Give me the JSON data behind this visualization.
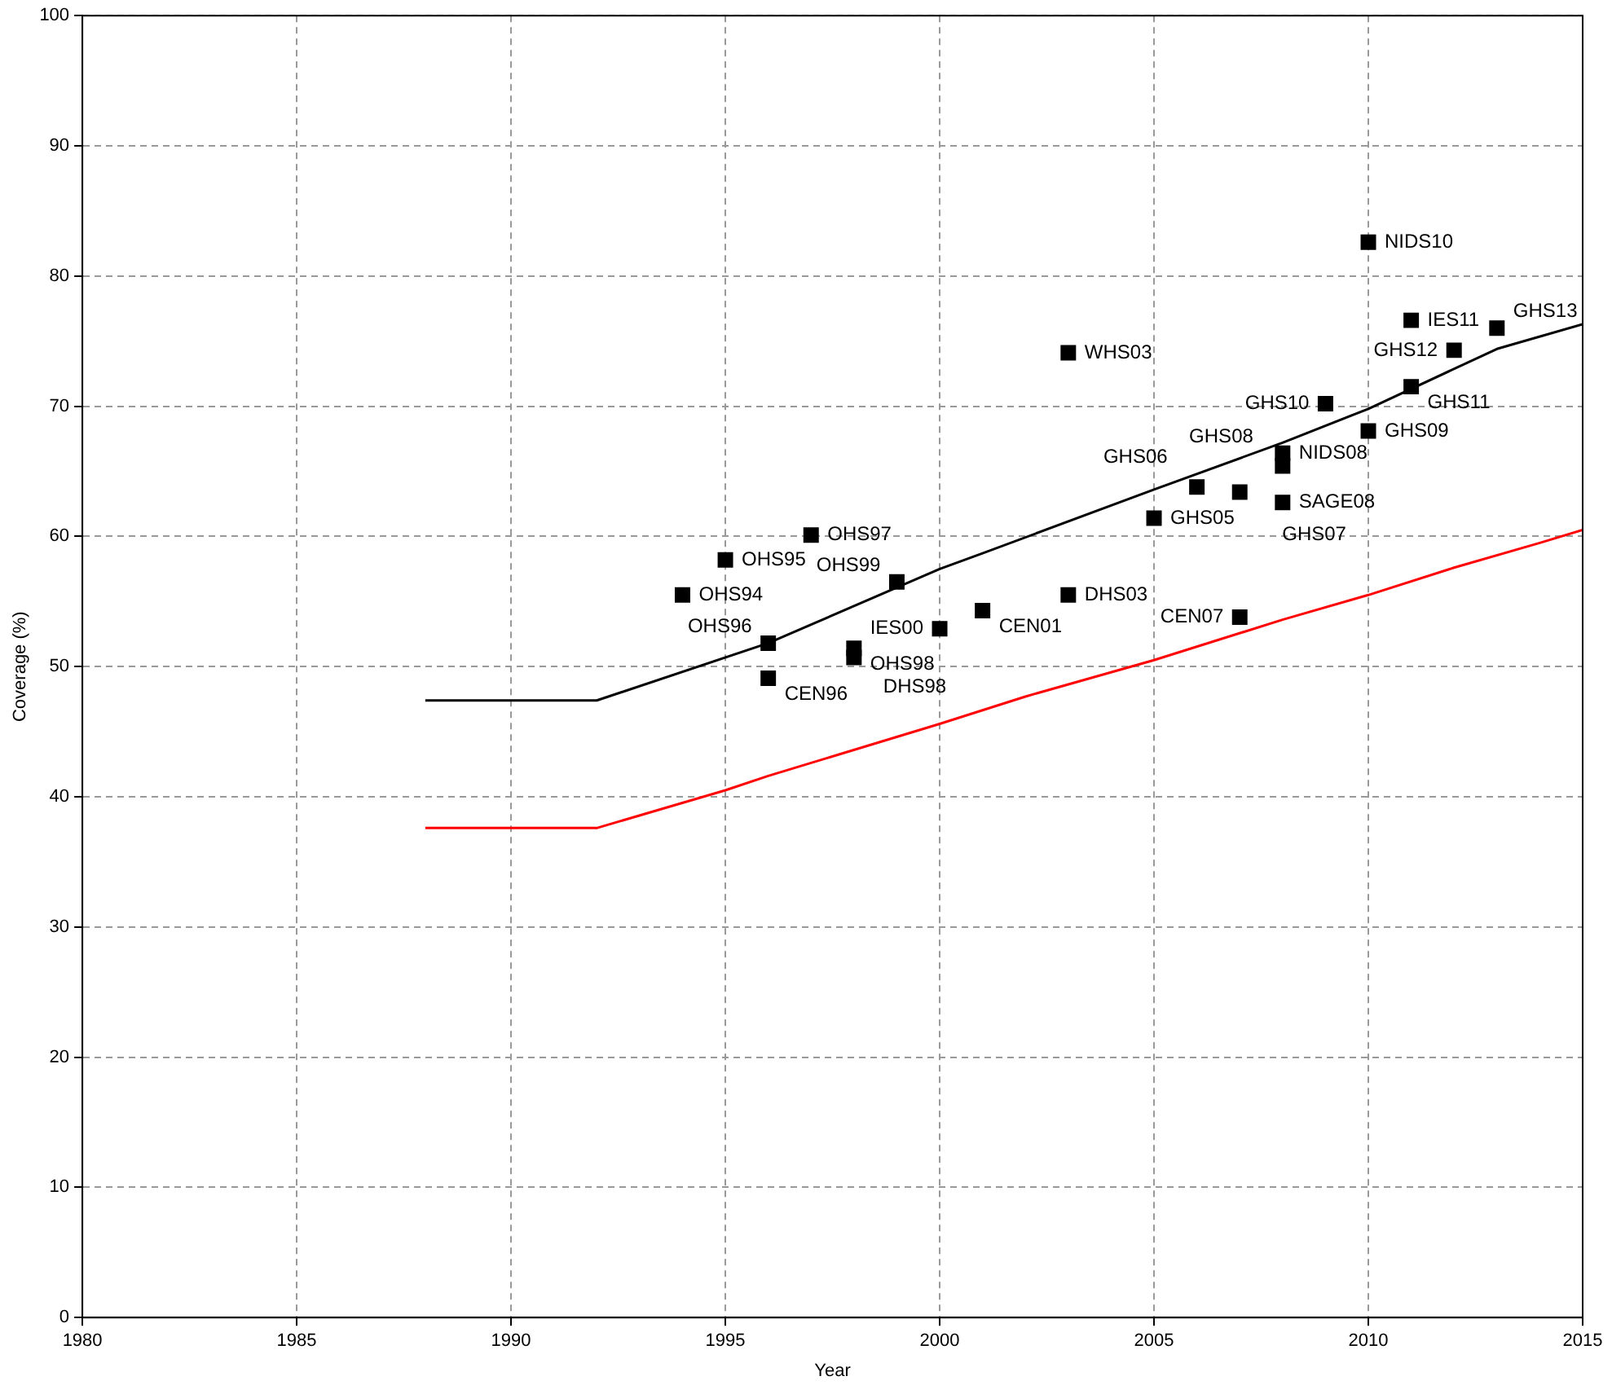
{
  "chart_data": {
    "type": "scatter",
    "xlabel": "Year",
    "ylabel": "Coverage (%)",
    "xlim": [
      1980,
      2015
    ],
    "xticks": [
      1980,
      1985,
      1990,
      1995,
      2000,
      2005,
      2010,
      2015
    ],
    "ylim": [
      0,
      100
    ],
    "yticks": [
      0,
      10,
      20,
      30,
      40,
      50,
      60,
      70,
      80,
      90,
      100
    ],
    "grid": true,
    "legend": false,
    "series": [
      {
        "type": "scatter",
        "marker": "square",
        "color": "#000000",
        "x": [
          1994,
          1995,
          1997,
          1996,
          1996,
          1998,
          1998,
          1999,
          2000,
          2001,
          2003,
          2003,
          2005,
          2006,
          2007,
          2008,
          2008,
          2008,
          2009,
          2010,
          2010,
          2011,
          2011,
          2012,
          2013,
          2007
        ],
        "values": [
          55.5,
          58.2,
          60.1,
          51.8,
          49.1,
          51.4,
          50.7,
          56.5,
          52.9,
          54.3,
          55.5,
          74.1,
          61.4,
          63.8,
          63.4,
          62.6,
          66.4,
          65.4,
          70.2,
          68.1,
          82.6,
          76.6,
          71.5,
          74.3,
          76.0,
          53.8
        ]
      },
      {
        "type": "line",
        "marker": "none",
        "color": "#000000",
        "x": [
          1988,
          1992,
          1996,
          2000,
          2001,
          2005,
          2008,
          2010,
          2013,
          2015
        ],
        "values": [
          47.4,
          47.4,
          51.8,
          57.5,
          58.7,
          63.6,
          67.2,
          69.8,
          74.4,
          76.3
        ]
      },
      {
        "type": "line",
        "marker": "none",
        "color": "#ff0000",
        "x": [
          1988,
          1992,
          1995,
          1996,
          2000,
          2002,
          2005,
          2008,
          2010,
          2012,
          2014,
          2015
        ],
        "values": [
          37.6,
          37.6,
          40.5,
          41.6,
          45.6,
          47.7,
          50.5,
          53.6,
          55.5,
          57.6,
          59.5,
          60.5
        ]
      }
    ],
    "annotations": [
      {
        "text": "OHS94",
        "x": 1994,
        "y": 55.5
      },
      {
        "text": "OHS95",
        "x": 1995,
        "y": 58.2
      },
      {
        "text": "OHS97",
        "x": 1997,
        "y": 60.1
      },
      {
        "text": "OHS96",
        "x": 1996,
        "y": 51.8
      },
      {
        "text": "CEN96",
        "x": 1996,
        "y": 49.1
      },
      {
        "text": "OHS98",
        "x": 1998,
        "y": 51.4
      },
      {
        "text": "DHS98",
        "x": 1998,
        "y": 50.7
      },
      {
        "text": "OHS99",
        "x": 1999,
        "y": 56.5
      },
      {
        "text": "IES00",
        "x": 2000,
        "y": 52.9
      },
      {
        "text": "CEN01",
        "x": 2001,
        "y": 54.3
      },
      {
        "text": "DHS03",
        "x": 2003,
        "y": 55.5
      },
      {
        "text": "WHS03",
        "x": 2003,
        "y": 74.1
      },
      {
        "text": "GHS05",
        "x": 2005,
        "y": 61.4
      },
      {
        "text": "GHS06",
        "x": 2006,
        "y": 63.8
      },
      {
        "text": "GHS07",
        "x": 2007,
        "y": 63.4
      },
      {
        "text": "SAGE08",
        "x": 2008,
        "y": 62.6
      },
      {
        "text": "NIDS08",
        "x": 2008,
        "y": 66.4
      },
      {
        "text": "GHS08",
        "x": 2008,
        "y": 65.4
      },
      {
        "text": "GHS10",
        "x": 2009,
        "y": 70.2
      },
      {
        "text": "GHS09",
        "x": 2010,
        "y": 68.1
      },
      {
        "text": "NIDS10",
        "x": 2010,
        "y": 82.6
      },
      {
        "text": "IES11",
        "x": 2011,
        "y": 76.6
      },
      {
        "text": "GHS11",
        "x": 2011,
        "y": 71.5
      },
      {
        "text": "GHS12",
        "x": 2012,
        "y": 74.3
      },
      {
        "text": "GHS13",
        "x": 2013,
        "y": 76.0
      },
      {
        "text": "CEN07",
        "x": 2007,
        "y": 53.8
      }
    ]
  }
}
